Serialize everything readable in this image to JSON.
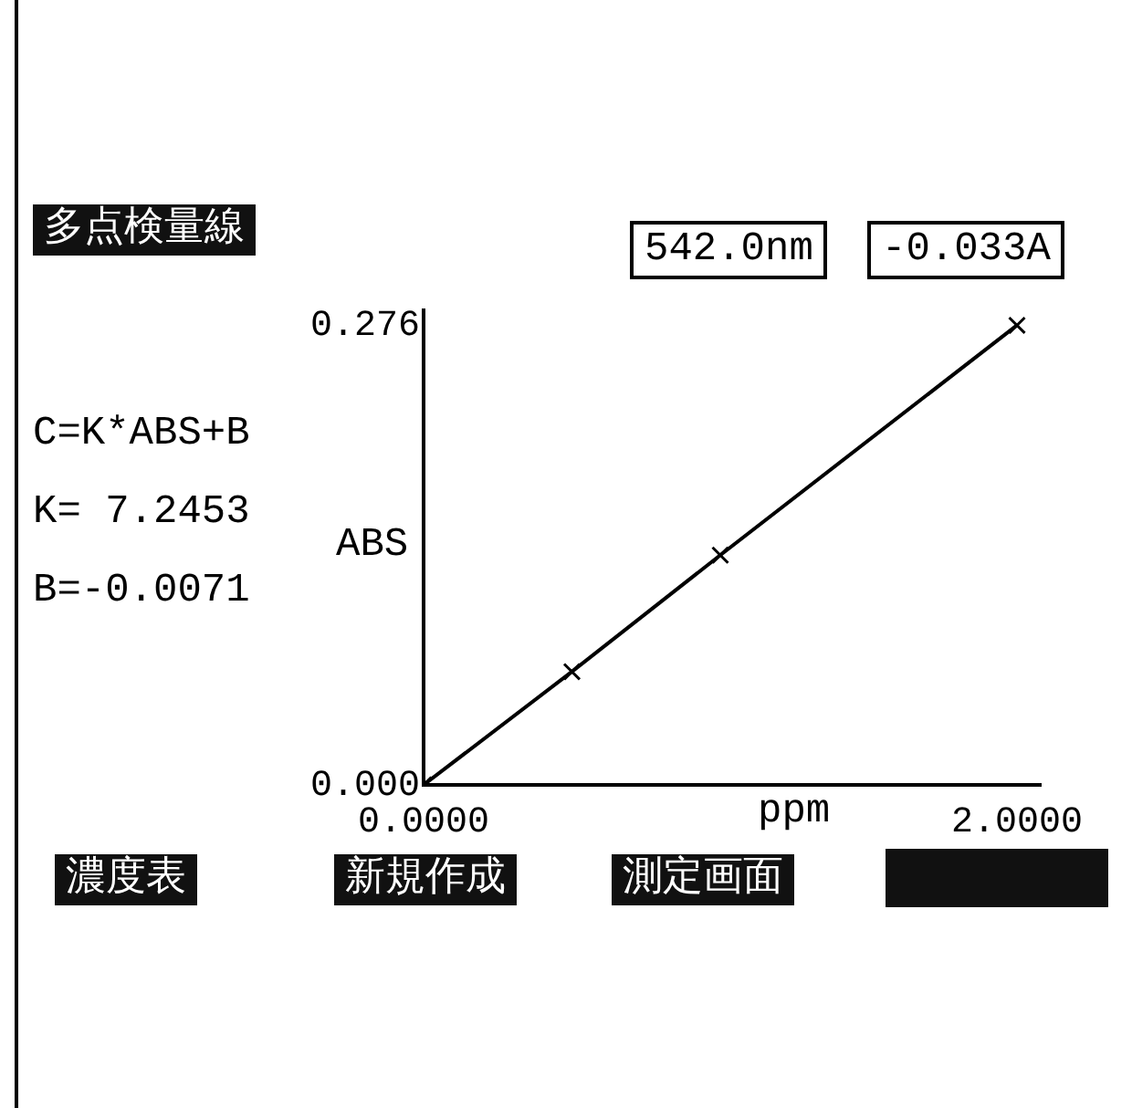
{
  "chart_data": {
    "type": "line",
    "title": "多点検量線",
    "xlabel": "ppm",
    "ylabel": "ABS",
    "x": [
      0,
      0.5,
      1.0,
      2.0
    ],
    "series": [
      {
        "color": "#000000",
        "values": [
          0,
          0.068,
          0.138,
          0.276
        ]
      }
    ],
    "xlim": [
      0,
      2.08
    ],
    "xticks": [
      {
        "value": 0,
        "label": "0.0000"
      },
      {
        "value": 2,
        "label": "2.0000"
      }
    ],
    "ylim": [
      0,
      0.285
    ],
    "yticks": [
      {
        "value": 0,
        "label": "0.000"
      },
      0.276
    ],
    "marker": "cross",
    "line_style": "solid",
    "grid": false,
    "legend": false,
    "annotations": [
      "542.0nm",
      "-0.033A",
      "C=K*ABS+B",
      "K= 7.2453",
      "B=-0.0071",
      "濃度表",
      "新規作成",
      "測定画面"
    ]
  }
}
